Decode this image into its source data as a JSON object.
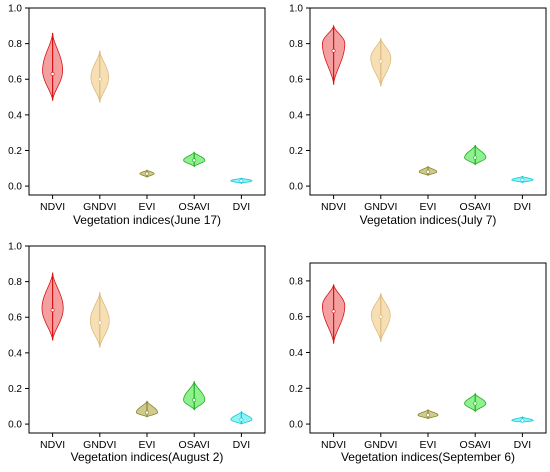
{
  "chart_data": [
    {
      "type": "violin",
      "xlabel": "Vegetation indices(June 17)",
      "ylabel": "",
      "ylim": [
        -0.05,
        1.0
      ],
      "yticks": [
        "0.0",
        "0.2",
        "0.4",
        "0.6",
        "0.8",
        "1.0"
      ],
      "categories": [
        "NDVI",
        "GNDVI",
        "EVI",
        "OSAVI",
        "DVI"
      ],
      "series": [
        {
          "category": "NDVI",
          "min": 0.48,
          "max": 0.86,
          "median": 0.63,
          "mode": 0.65,
          "max_density_width": 0.34
        },
        {
          "category": "GNDVI",
          "min": 0.47,
          "max": 0.76,
          "median": 0.6,
          "mode": 0.61,
          "max_density_width": 0.3
        },
        {
          "category": "EVI",
          "min": 0.05,
          "max": 0.09,
          "median": 0.07,
          "mode": 0.07,
          "max_density_width": 0.24
        },
        {
          "category": "OSAVI",
          "min": 0.11,
          "max": 0.19,
          "median": 0.145,
          "mode": 0.145,
          "max_density_width": 0.36
        },
        {
          "category": "DVI",
          "min": 0.015,
          "max": 0.045,
          "median": 0.03,
          "mode": 0.03,
          "max_density_width": 0.36
        }
      ]
    },
    {
      "type": "violin",
      "xlabel": "Vegetation indices(July 7)",
      "ylabel": "",
      "ylim": [
        -0.05,
        1.0
      ],
      "yticks": [
        "0.0",
        "0.2",
        "0.4",
        "0.6",
        "0.8",
        "1.0"
      ],
      "categories": [
        "NDVI",
        "GNDVI",
        "EVI",
        "OSAVI",
        "DVI"
      ],
      "series": [
        {
          "category": "NDVI",
          "min": 0.57,
          "max": 0.9,
          "median": 0.76,
          "mode": 0.8,
          "max_density_width": 0.38
        },
        {
          "category": "GNDVI",
          "min": 0.56,
          "max": 0.83,
          "median": 0.7,
          "mode": 0.72,
          "max_density_width": 0.34
        },
        {
          "category": "EVI",
          "min": 0.06,
          "max": 0.11,
          "median": 0.08,
          "mode": 0.08,
          "max_density_width": 0.3
        },
        {
          "category": "OSAVI",
          "min": 0.12,
          "max": 0.23,
          "median": 0.16,
          "mode": 0.16,
          "max_density_width": 0.36
        },
        {
          "category": "DVI",
          "min": 0.02,
          "max": 0.055,
          "median": 0.035,
          "mode": 0.035,
          "max_density_width": 0.36
        }
      ]
    },
    {
      "type": "violin",
      "xlabel": "Vegetation indices(August 2)",
      "ylabel": "",
      "ylim": [
        -0.05,
        1.0
      ],
      "yticks": [
        "0.0",
        "0.2",
        "0.4",
        "0.6",
        "0.8",
        "1.0"
      ],
      "categories": [
        "NDVI",
        "GNDVI",
        "EVI",
        "OSAVI",
        "DVI"
      ],
      "series": [
        {
          "category": "NDVI",
          "min": 0.47,
          "max": 0.85,
          "median": 0.64,
          "mode": 0.65,
          "max_density_width": 0.36
        },
        {
          "category": "GNDVI",
          "min": 0.43,
          "max": 0.74,
          "median": 0.57,
          "mode": 0.58,
          "max_density_width": 0.32
        },
        {
          "category": "EVI",
          "min": 0.04,
          "max": 0.13,
          "median": 0.065,
          "mode": 0.065,
          "max_density_width": 0.36
        },
        {
          "category": "OSAVI",
          "min": 0.08,
          "max": 0.24,
          "median": 0.135,
          "mode": 0.135,
          "max_density_width": 0.36
        },
        {
          "category": "DVI",
          "min": 0.0,
          "max": 0.07,
          "median": 0.025,
          "mode": 0.025,
          "max_density_width": 0.36
        }
      ]
    },
    {
      "type": "violin",
      "xlabel": "Vegetation indices(September 6)",
      "ylabel": "",
      "ylim": [
        -0.05,
        0.9
      ],
      "yticks": [
        "0.0",
        "0.2",
        "0.4",
        "0.6",
        "0.8"
      ],
      "categories": [
        "NDVI",
        "GNDVI",
        "EVI",
        "OSAVI",
        "DVI"
      ],
      "series": [
        {
          "category": "NDVI",
          "min": 0.45,
          "max": 0.78,
          "median": 0.63,
          "mode": 0.66,
          "max_density_width": 0.38
        },
        {
          "category": "GNDVI",
          "min": 0.46,
          "max": 0.73,
          "median": 0.6,
          "mode": 0.61,
          "max_density_width": 0.32
        },
        {
          "category": "EVI",
          "min": 0.03,
          "max": 0.08,
          "median": 0.05,
          "mode": 0.05,
          "max_density_width": 0.34
        },
        {
          "category": "OSAVI",
          "min": 0.07,
          "max": 0.17,
          "median": 0.115,
          "mode": 0.115,
          "max_density_width": 0.36
        },
        {
          "category": "DVI",
          "min": 0.01,
          "max": 0.04,
          "median": 0.02,
          "mode": 0.02,
          "max_density_width": 0.36
        }
      ]
    }
  ],
  "colors": {
    "NDVI": {
      "fill": "#f4a0a0",
      "stroke": "#d81414"
    },
    "GNDVI": {
      "fill": "#f7dfb5",
      "stroke": "#dcbb7e"
    },
    "EVI": {
      "fill": "#cfcb8e",
      "stroke": "#8a8530"
    },
    "OSAVI": {
      "fill": "#8ef08e",
      "stroke": "#1fae1f"
    },
    "DVI": {
      "fill": "#8ef4f4",
      "stroke": "#11c8d8"
    }
  }
}
